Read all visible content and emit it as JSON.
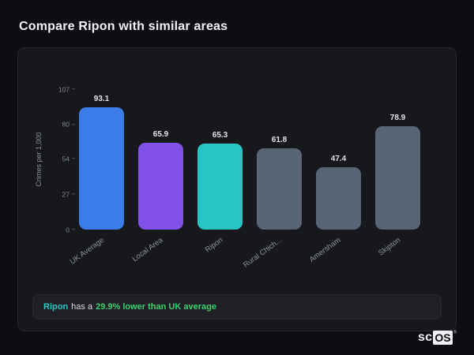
{
  "page": {
    "title": "Compare Ripon with similar areas"
  },
  "chart_data": {
    "type": "bar",
    "categories": [
      "UK Average",
      "Local Area",
      "Ripon",
      "Rural Chich...",
      "Amersham",
      "Skipton"
    ],
    "values": [
      93.1,
      65.9,
      65.3,
      61.8,
      47.4,
      78.9
    ],
    "bar_colors": [
      "#3b7ce8",
      "#8150e8",
      "#29c5c5",
      "#5a6477",
      "#5a6477",
      "#5a6477"
    ],
    "title": "",
    "xlabel": "",
    "ylabel": "Crimes per 1,000",
    "yticks": [
      0,
      27,
      54,
      80,
      107
    ],
    "ylim": [
      0,
      107
    ],
    "grid": false,
    "legend": false
  },
  "note": {
    "subject": "Ripon",
    "connector": "has a",
    "stat": "29.9% lower than UK average",
    "subject_color": "#2bc5c5",
    "stat_color": "#3ecf70"
  },
  "logo": {
    "prefix": "sc",
    "boxed": "OS",
    "registered": "®"
  },
  "colors": {
    "background": "#0d0e11",
    "card_background": "#16181c",
    "note_background": "#1e2026",
    "accent_teal": "#29c5c5",
    "accent_green": "#3ecf70",
    "accent_blue": "#3b7ce8",
    "accent_purple": "#8150e8",
    "neutral_bar": "#5a6477"
  }
}
